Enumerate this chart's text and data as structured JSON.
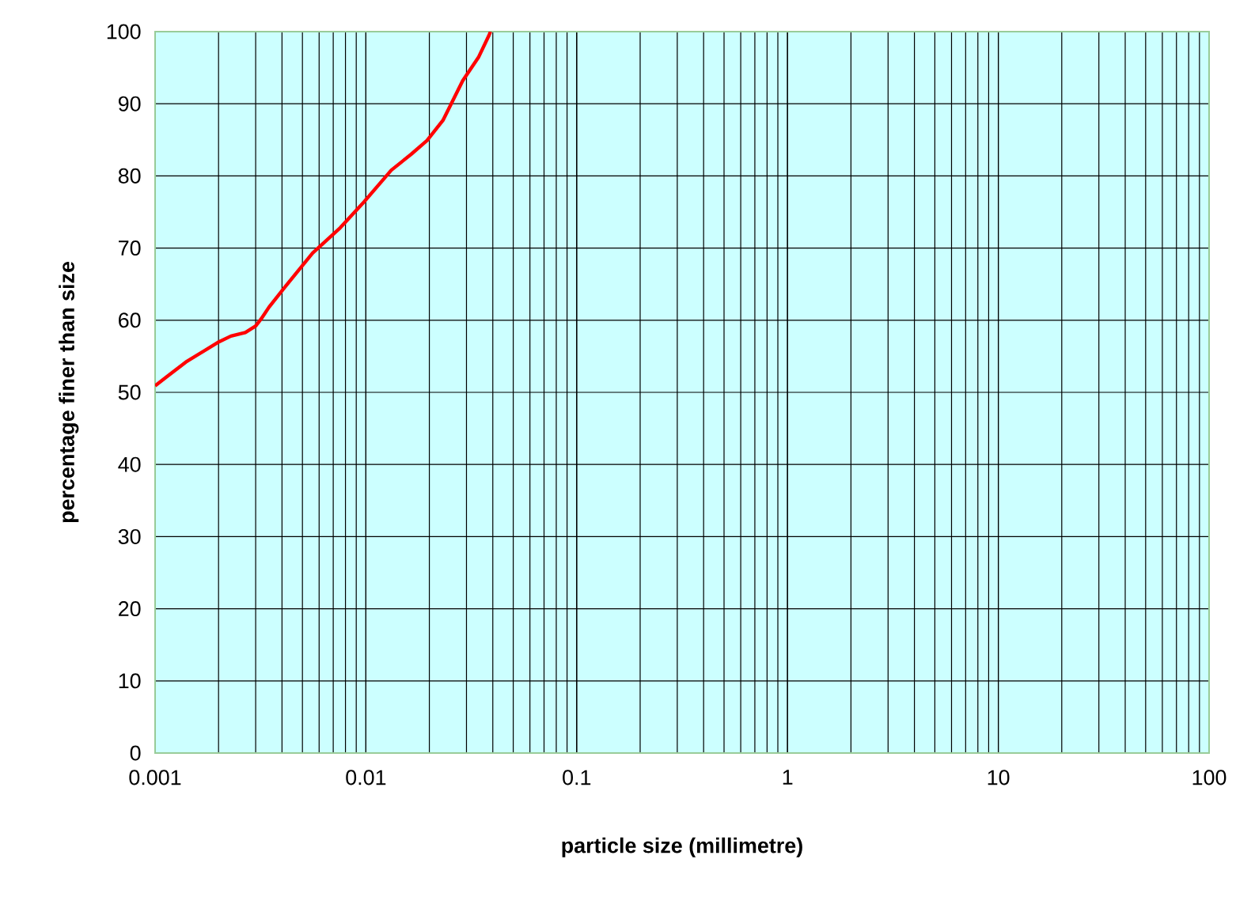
{
  "chart_data": {
    "type": "line",
    "xlabel": "particle size (millimetre)",
    "ylabel": "percentage finer than size",
    "log": "x",
    "grid": true,
    "marker": "none",
    "line_style": "solid",
    "xlim": [
      0.001,
      100
    ],
    "ylim": [
      0,
      100
    ],
    "xticks": [
      0.001,
      0.01,
      0.1,
      1,
      10,
      100
    ],
    "yticks": [
      0,
      10,
      20,
      30,
      40,
      50,
      60,
      70,
      80,
      90,
      100
    ],
    "series": [
      {
        "color": "#ff0000",
        "x": [
          0.001,
          0.00113,
          0.0014,
          0.00198,
          0.00229,
          0.00268,
          0.003,
          0.00319,
          0.00347,
          0.00413,
          0.00559,
          0.00755,
          0.0098,
          0.0132,
          0.0164,
          0.0195,
          0.0232,
          0.0288,
          0.0343,
          0.0384,
          0.039
        ],
        "values": [
          50.9,
          52.1,
          54.2,
          56.9,
          57.8,
          58.3,
          59.2,
          60.2,
          61.8,
          64.6,
          69.3,
          72.8,
          76.4,
          80.8,
          83.0,
          84.9,
          87.7,
          93.2,
          96.5,
          99.5,
          100
        ]
      }
    ]
  }
}
